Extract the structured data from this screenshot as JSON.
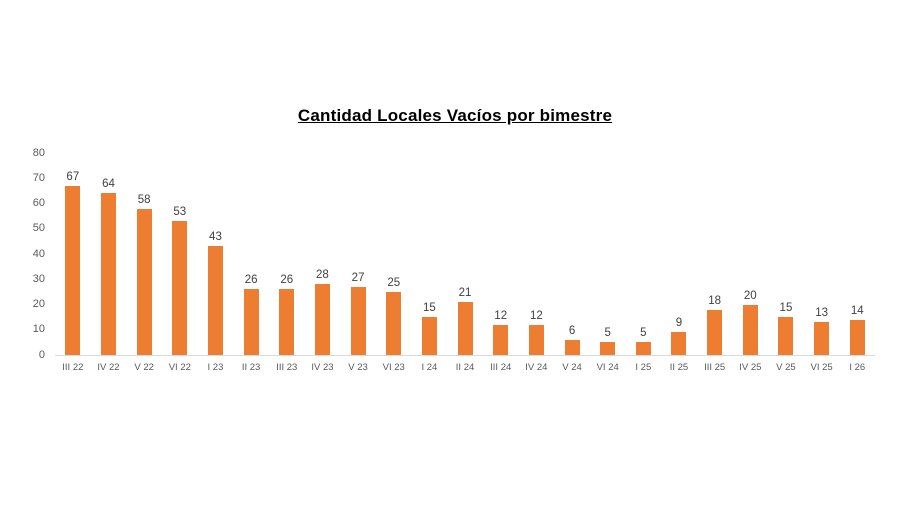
{
  "chart_data": {
    "type": "bar",
    "title": "Cantidad Locales Vacíos por bimestre",
    "categories": [
      "III 22",
      "IV 22",
      "V 22",
      "VI 22",
      "I 23",
      "II 23",
      "III 23",
      "IV 23",
      "V 23",
      "VI 23",
      "I 24",
      "II 24",
      "III 24",
      "IV 24",
      "V 24",
      "VI 24",
      "I 25",
      "II 25",
      "III 25",
      "IV 25",
      "V 25",
      "VI 25",
      "I 26"
    ],
    "values": [
      67,
      64,
      58,
      53,
      43,
      26,
      26,
      28,
      27,
      25,
      15,
      21,
      12,
      12,
      6,
      5,
      5,
      9,
      18,
      20,
      15,
      13,
      14
    ],
    "xlabel": "",
    "ylabel": "",
    "ylim": [
      0,
      80
    ],
    "ytick_step": 10,
    "yticks": [
      0,
      10,
      20,
      30,
      40,
      50,
      60,
      70,
      80
    ],
    "grid": false,
    "legend": false,
    "data_labels": true,
    "colors": {
      "bar": "#ED7D31",
      "axis_line": "#D9D9D9",
      "data_label": "#404040",
      "tick_label": "#595959",
      "title": "#000000",
      "background": "#FFFFFF"
    }
  }
}
